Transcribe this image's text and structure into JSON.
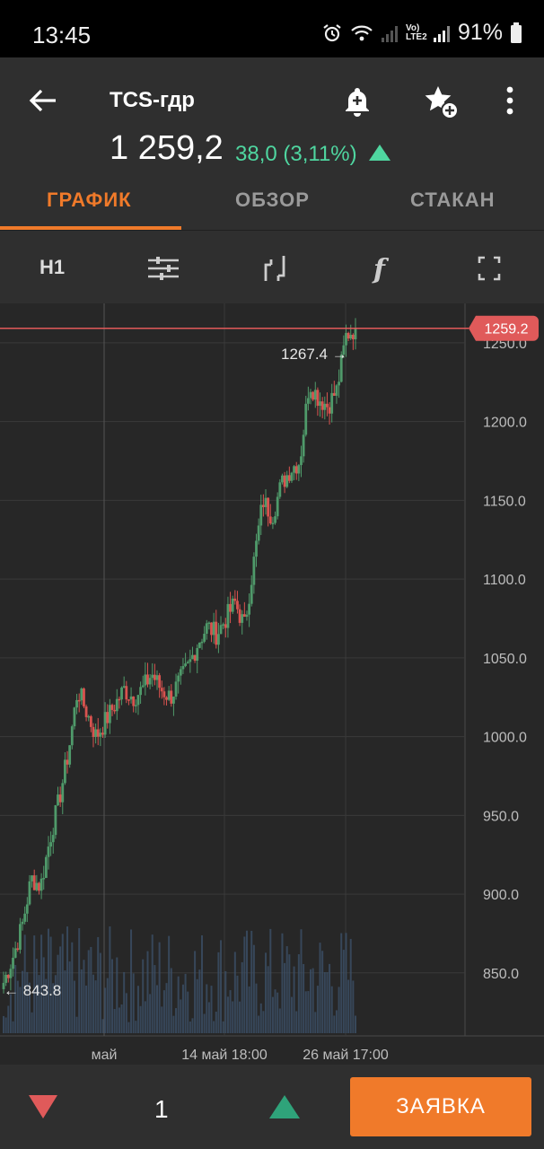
{
  "status_bar": {
    "time": "13:45",
    "network": "Vo) LTE2",
    "battery": "91%"
  },
  "header": {
    "ticker": "TCS-гдр",
    "price": "1 259,2",
    "change": "38,0 (3,11%)"
  },
  "tabs": [
    {
      "label": "ГРАФИК",
      "active": true
    },
    {
      "label": "ОБЗОР",
      "active": false
    },
    {
      "label": "СТАКАН",
      "active": false
    }
  ],
  "toolbar": {
    "timeframe": "H1"
  },
  "chart_data": {
    "type": "candlestick",
    "y_ticks": [
      "1250.0",
      "1200.0",
      "1150.0",
      "1100.0",
      "1050.0",
      "1000.0",
      "950.0",
      "900.0",
      "850.0"
    ],
    "x_ticks": [
      "май",
      "14 май 18:00",
      "26 май 17:00"
    ],
    "ylim": [
      810,
      1275
    ],
    "current_price": "1259.2",
    "high_marker": "1267.4 →",
    "low_marker": "← 843.8",
    "colors": {
      "up": "#4f9a6a",
      "down": "#d9534f",
      "price_line": "#e05a5a",
      "volume": "#3c5068",
      "grid": "#3a3a3a"
    },
    "anchor_closes": [
      843.8,
      860,
      880,
      910,
      905,
      935,
      960,
      990,
      1030,
      1015,
      1000,
      1010,
      1020,
      1030,
      1025,
      1030,
      1040,
      1030,
      1025,
      1035,
      1045,
      1060,
      1070,
      1065,
      1075,
      1085,
      1070,
      1110,
      1150,
      1140,
      1160,
      1170,
      1175,
      1225,
      1215,
      1210,
      1220,
      1255,
      1259.2
    ]
  },
  "bottom_bar": {
    "quantity": "1",
    "order_label": "ЗАЯВКА"
  }
}
